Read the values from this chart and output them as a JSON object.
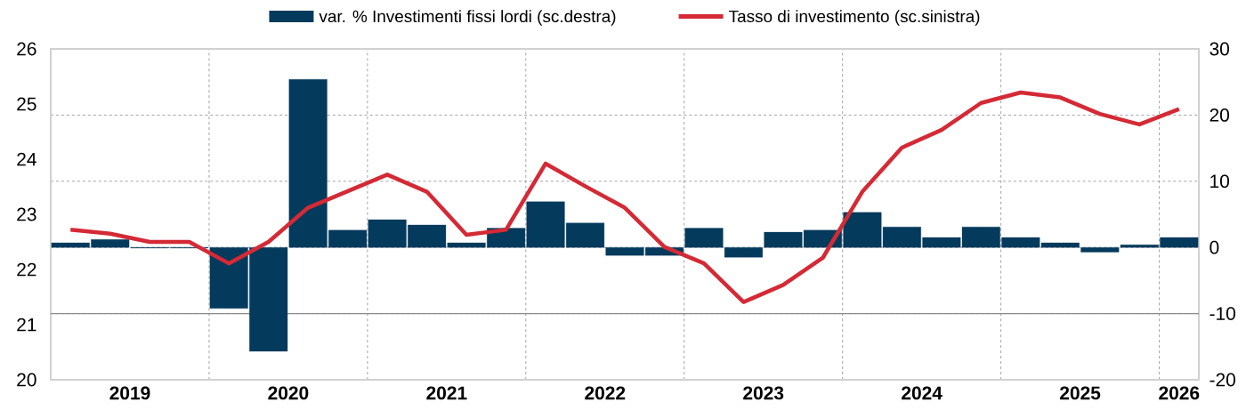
{
  "chart_data": {
    "type": "bar",
    "x": [
      2019.125,
      2019.375,
      2019.625,
      2019.875,
      2020.125,
      2020.375,
      2020.625,
      2020.875,
      2021.125,
      2021.375,
      2021.625,
      2021.875,
      2022.125,
      2022.375,
      2022.625,
      2022.875,
      2023.125,
      2023.375,
      2023.625,
      2023.875,
      2024.125,
      2024.375,
      2024.625,
      2024.875,
      2025.125,
      2025.375,
      2025.625,
      2025.875,
      2026.125
    ],
    "series": [
      {
        "name": "var. % Investimenti fissi lordi (sc.destra)",
        "axis": "y2",
        "color": "#043a5c",
        "values": [
          0.7,
          1.2,
          -0.1,
          -0.1,
          -9.2,
          -15.7,
          25.4,
          2.6,
          4.2,
          3.4,
          0.7,
          2.9,
          6.9,
          3.7,
          -1.2,
          -1.2,
          2.9,
          -1.5,
          2.3,
          2.6,
          5.3,
          3.1,
          1.5,
          3.1,
          1.5,
          0.7,
          -0.7,
          0.4,
          1.5
        ]
      },
      {
        "name": "Tasso di investimento (sc.sinistra)",
        "type": "line",
        "axis": "y",
        "color": "#d42a35",
        "values": [
          22.72,
          22.65,
          22.5,
          22.5,
          22.11,
          22.5,
          23.12,
          23.42,
          23.72,
          23.41,
          22.63,
          22.72,
          23.92,
          23.51,
          23.12,
          22.41,
          22.11,
          21.41,
          21.72,
          22.21,
          23.41,
          24.21,
          24.53,
          25.02,
          25.21,
          25.12,
          24.82,
          24.63,
          24.91
        ]
      }
    ],
    "xlim": [
      2019,
      2026.25
    ],
    "xticks": [
      {
        "value": 2019.5,
        "label": "2019"
      },
      {
        "value": 2020,
        "label": null
      },
      {
        "value": 2020.5,
        "label": "2020"
      },
      {
        "value": 2021,
        "label": null
      },
      {
        "value": 2021.5,
        "label": "2021"
      },
      {
        "value": 2022,
        "label": null
      },
      {
        "value": 2022.5,
        "label": "2022"
      },
      {
        "value": 2023,
        "label": null
      },
      {
        "value": 2023.5,
        "label": "2023"
      },
      {
        "value": 2024,
        "label": null
      },
      {
        "value": 2024.5,
        "label": "2024"
      },
      {
        "value": 2025,
        "label": null
      },
      {
        "value": 2025.5,
        "label": "2025"
      },
      {
        "value": 2026,
        "label": null
      },
      {
        "value": 2026.125,
        "label": "2026"
      }
    ],
    "ylim": [
      20,
      26
    ],
    "yticks": [
      20,
      21,
      22,
      23,
      24,
      25,
      26
    ],
    "y2lim": [
      -20,
      30
    ],
    "y2ticks": [
      -20,
      -10,
      0,
      10,
      20,
      30
    ],
    "ref_lines": [
      {
        "axis": "y2",
        "value": -10,
        "color": "#8c8c8c"
      }
    ],
    "grid": true,
    "legend": "top"
  }
}
